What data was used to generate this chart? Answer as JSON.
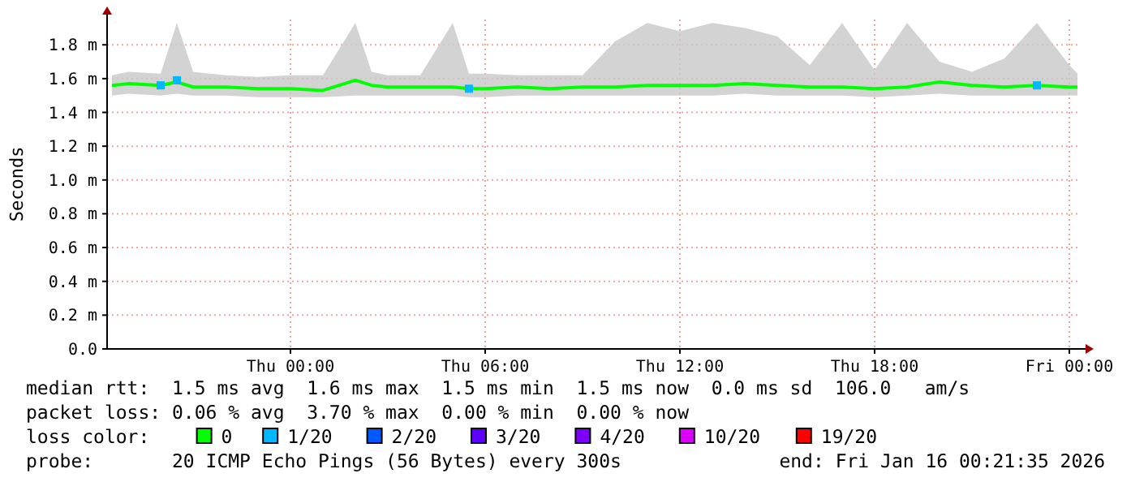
{
  "chart_data": {
    "type": "line",
    "ylabel": "Seconds",
    "legend_title": "loss color:",
    "legend": "bottom",
    "grid": true,
    "line_style": "solid",
    "x": [
      "2026-01-14T18:30",
      "2026-01-14T19:00",
      "2026-01-14T20:00",
      "2026-01-14T20:30",
      "2026-01-14T21:00",
      "2026-01-14T22:00",
      "2026-01-14T23:00",
      "2026-01-15T00:00",
      "2026-01-15T01:00",
      "2026-01-15T02:00",
      "2026-01-15T02:30",
      "2026-01-15T03:00",
      "2026-01-15T04:00",
      "2026-01-15T05:00",
      "2026-01-15T05:30",
      "2026-01-15T06:00",
      "2026-01-15T07:00",
      "2026-01-15T08:00",
      "2026-01-15T09:00",
      "2026-01-15T10:00",
      "2026-01-15T11:00",
      "2026-01-15T12:00",
      "2026-01-15T13:00",
      "2026-01-15T14:00",
      "2026-01-15T15:00",
      "2026-01-15T16:00",
      "2026-01-15T17:00",
      "2026-01-15T18:00",
      "2026-01-15T19:00",
      "2026-01-15T20:00",
      "2026-01-15T21:00",
      "2026-01-15T22:00",
      "2026-01-15T23:00",
      "2026-01-16T00:00",
      "2026-01-16T00:15"
    ],
    "xlim": [
      "2026-01-14T18:21",
      "2026-01-16T00:21"
    ],
    "xticks": [
      {
        "value": "2026-01-15T00:00",
        "label": "Thu 00:00"
      },
      {
        "value": "2026-01-15T06:00",
        "label": "Thu 06:00"
      },
      {
        "value": "2026-01-15T12:00",
        "label": "Thu 12:00"
      },
      {
        "value": "2026-01-15T18:00",
        "label": "Thu 18:00"
      },
      {
        "value": "2026-01-16T00:00",
        "label": "Fri 00:00"
      }
    ],
    "ylim": [
      0,
      1.95
    ],
    "yticks": [
      {
        "value": 0,
        "label": "0.0"
      },
      {
        "value": 0.2,
        "label": "0.2 m"
      },
      {
        "value": 0.4,
        "label": "0.4 m"
      },
      {
        "value": 0.6,
        "label": "0.6 m"
      },
      {
        "value": 0.8,
        "label": "0.8 m"
      },
      {
        "value": 1.0,
        "label": "1.0 m"
      },
      {
        "value": 1.2,
        "label": "1.2 m"
      },
      {
        "value": 1.4,
        "label": "1.4 m"
      },
      {
        "value": 1.6,
        "label": "1.6 m"
      },
      {
        "value": 1.8,
        "label": "1.8 m"
      }
    ],
    "series": [
      {
        "name": "0",
        "color": "#00ff00",
        "values": [
          1.56,
          1.57,
          1.56,
          1.58,
          1.55,
          1.55,
          1.54,
          1.54,
          1.53,
          1.59,
          1.56,
          1.55,
          1.55,
          1.55,
          1.54,
          1.54,
          1.55,
          1.54,
          1.55,
          1.55,
          1.56,
          1.56,
          1.56,
          1.57,
          1.56,
          1.55,
          1.55,
          1.54,
          1.55,
          1.58,
          1.56,
          1.55,
          1.56,
          1.55,
          1.55
        ],
        "lower": [
          1.5,
          1.51,
          1.5,
          1.51,
          1.5,
          1.5,
          1.49,
          1.49,
          1.49,
          1.5,
          1.5,
          1.5,
          1.5,
          1.5,
          1.49,
          1.49,
          1.5,
          1.5,
          1.5,
          1.5,
          1.5,
          1.5,
          1.5,
          1.51,
          1.5,
          1.5,
          1.5,
          1.49,
          1.5,
          1.51,
          1.5,
          1.5,
          1.5,
          1.5,
          1.5
        ],
        "upper": [
          1.62,
          1.64,
          1.63,
          1.93,
          1.64,
          1.62,
          1.61,
          1.62,
          1.62,
          1.93,
          1.64,
          1.62,
          1.62,
          1.93,
          1.63,
          1.63,
          1.62,
          1.62,
          1.62,
          1.82,
          1.93,
          1.88,
          1.93,
          1.9,
          1.85,
          1.68,
          1.93,
          1.65,
          1.93,
          1.7,
          1.64,
          1.72,
          1.93,
          1.68,
          1.63
        ]
      },
      {
        "name": "1/20",
        "color": "#00b8ff",
        "type": "scatter",
        "marker": "square",
        "values": [
          null,
          null,
          1.56,
          1.59,
          null,
          null,
          null,
          null,
          null,
          null,
          null,
          null,
          null,
          null,
          1.54,
          null,
          null,
          null,
          null,
          null,
          null,
          null,
          null,
          null,
          null,
          null,
          null,
          null,
          null,
          null,
          null,
          null,
          1.56,
          null,
          null
        ]
      },
      {
        "name": "2/20",
        "color": "#0059ff",
        "type": "scatter",
        "values": [
          null,
          null,
          null,
          null,
          null,
          null,
          null,
          null,
          null,
          null,
          null,
          null,
          null,
          null,
          null,
          null,
          null,
          null,
          null,
          null,
          null,
          null,
          null,
          null,
          null,
          null,
          null,
          null,
          null,
          null,
          null,
          null,
          null,
          null,
          null
        ]
      },
      {
        "name": "3/20",
        "color": "#5e00ff",
        "type": "scatter",
        "values": [
          null,
          null,
          null,
          null,
          null,
          null,
          null,
          null,
          null,
          null,
          null,
          null,
          null,
          null,
          null,
          null,
          null,
          null,
          null,
          null,
          null,
          null,
          null,
          null,
          null,
          null,
          null,
          null,
          null,
          null,
          null,
          null,
          null,
          null,
          null
        ]
      },
      {
        "name": "4/20",
        "color": "#7e00ff",
        "type": "scatter",
        "values": [
          null,
          null,
          null,
          null,
          null,
          null,
          null,
          null,
          null,
          null,
          null,
          null,
          null,
          null,
          null,
          null,
          null,
          null,
          null,
          null,
          null,
          null,
          null,
          null,
          null,
          null,
          null,
          null,
          null,
          null,
          null,
          null,
          null,
          null,
          null
        ]
      },
      {
        "name": "10/20",
        "color": "#dd00ff",
        "type": "scatter",
        "values": [
          null,
          null,
          null,
          null,
          null,
          null,
          null,
          null,
          null,
          null,
          null,
          null,
          null,
          null,
          null,
          null,
          null,
          null,
          null,
          null,
          null,
          null,
          null,
          null,
          null,
          null,
          null,
          null,
          null,
          null,
          null,
          null,
          null,
          null,
          null
        ]
      },
      {
        "name": "19/20",
        "color": "#ff0000",
        "type": "scatter",
        "values": [
          null,
          null,
          null,
          null,
          null,
          null,
          null,
          null,
          null,
          null,
          null,
          null,
          null,
          null,
          null,
          null,
          null,
          null,
          null,
          null,
          null,
          null,
          null,
          null,
          null,
          null,
          null,
          null,
          null,
          null,
          null,
          null,
          null,
          null,
          null
        ]
      }
    ],
    "annotations": [
      "median rtt:  1.5 ms avg  1.6 ms max  1.5 ms min  1.5 ms now  0.0 ms sd  106.0   am/s",
      "packet loss: 0.06 % avg  3.70 % max  0.00 % min  0.00 % now",
      "probe:       20 ICMP Echo Pings (56 Bytes) every 300s",
      "end: Fri Jan 16 00:21:35 2026"
    ]
  }
}
